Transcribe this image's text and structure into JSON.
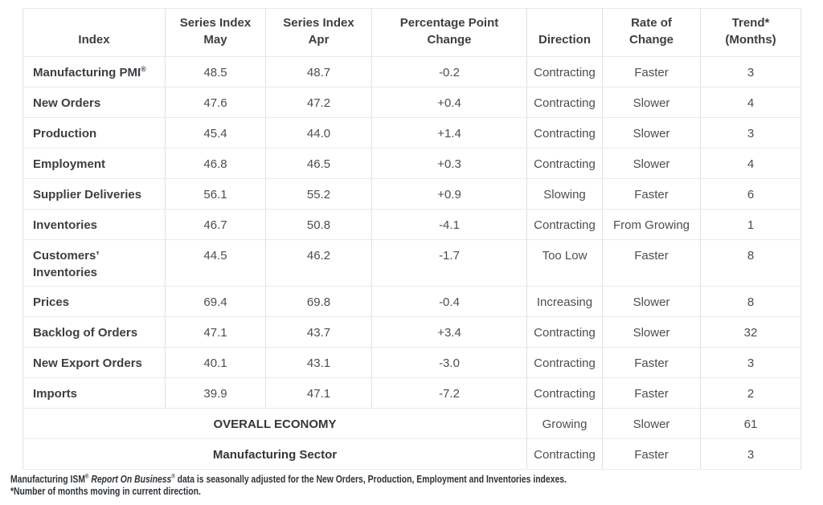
{
  "colors": {
    "background": "#ffffff",
    "header_text": "#3b3f44",
    "value_text": "#4a4e53",
    "border_vertical": "#dfe2e4",
    "border_horizontal": "#e9eaeb",
    "footnote_text": "#2f3439"
  },
  "chart_data": {
    "type": "table",
    "title": "",
    "columns": [
      {
        "key": "index",
        "label": "Index",
        "lines": [
          "Index"
        ]
      },
      {
        "key": "may",
        "label": "Series Index May",
        "lines": [
          "Series Index",
          "May"
        ]
      },
      {
        "key": "apr",
        "label": "Series Index Apr",
        "lines": [
          "Series Index",
          "Apr"
        ]
      },
      {
        "key": "change",
        "label": "Percentage Point Change",
        "lines": [
          "Percentage Point",
          "Change"
        ]
      },
      {
        "key": "direction",
        "label": "Direction",
        "lines": [
          "Direction"
        ]
      },
      {
        "key": "rate",
        "label": "Rate of Change",
        "lines": [
          "Rate of",
          "Change"
        ]
      },
      {
        "key": "trend",
        "label": "Trend* (Months)",
        "lines": [
          "Trend*",
          "(Months)"
        ]
      }
    ],
    "rows": [
      {
        "index": "Manufacturing PMI",
        "index_sup": "®",
        "may": "48.5",
        "apr": "48.7",
        "change": "-0.2",
        "direction": "Contracting",
        "rate": "Faster",
        "trend": "3"
      },
      {
        "index": "New Orders",
        "may": "47.6",
        "apr": "47.2",
        "change": "+0.4",
        "direction": "Contracting",
        "rate": "Slower",
        "trend": "4"
      },
      {
        "index": "Production",
        "may": "45.4",
        "apr": "44.0",
        "change": "+1.4",
        "direction": "Contracting",
        "rate": "Slower",
        "trend": "3"
      },
      {
        "index": "Employment",
        "may": "46.8",
        "apr": "46.5",
        "change": "+0.3",
        "direction": "Contracting",
        "rate": "Slower",
        "trend": "4"
      },
      {
        "index": "Supplier Deliveries",
        "may": "56.1",
        "apr": "55.2",
        "change": "+0.9",
        "direction": "Slowing",
        "rate": "Faster",
        "trend": "6"
      },
      {
        "index": "Inventories",
        "may": "46.7",
        "apr": "50.8",
        "change": "-4.1",
        "direction": "Contracting",
        "rate": "From Growing",
        "trend": "1"
      },
      {
        "index": "Customers’ Inventories",
        "may": "44.5",
        "apr": "46.2",
        "change": "-1.7",
        "direction": "Too Low",
        "rate": "Faster",
        "trend": "8"
      },
      {
        "index": "Prices",
        "may": "69.4",
        "apr": "69.8",
        "change": "-0.4",
        "direction": "Increasing",
        "rate": "Slower",
        "trend": "8"
      },
      {
        "index": "Backlog of Orders",
        "may": "47.1",
        "apr": "43.7",
        "change": "+3.4",
        "direction": "Contracting",
        "rate": "Slower",
        "trend": "32"
      },
      {
        "index": "New Export Orders",
        "may": "40.1",
        "apr": "43.1",
        "change": "-3.0",
        "direction": "Contracting",
        "rate": "Faster",
        "trend": "3"
      },
      {
        "index": "Imports",
        "may": "39.9",
        "apr": "47.1",
        "change": "-7.2",
        "direction": "Contracting",
        "rate": "Faster",
        "trend": "2"
      }
    ],
    "summary_rows": [
      {
        "label": "OVERALL ECONOMY",
        "direction": "Growing",
        "rate": "Slower",
        "trend": "61"
      },
      {
        "label": "Manufacturing Sector",
        "direction": "Contracting",
        "rate": "Faster",
        "trend": "3"
      }
    ]
  },
  "footnote": {
    "lines": [
      [
        {
          "text": "Manufacturing ISM"
        },
        {
          "text": "®",
          "sup": true
        },
        {
          "text": " "
        },
        {
          "text": "Report On Business",
          "italic": true
        },
        {
          "text": "®",
          "sup": true
        },
        {
          "text": " data is seasonally adjusted for the New Orders, Production, Employment and Inventories indexes."
        }
      ],
      [
        {
          "text": "*Number of months moving in current direction."
        }
      ]
    ]
  }
}
